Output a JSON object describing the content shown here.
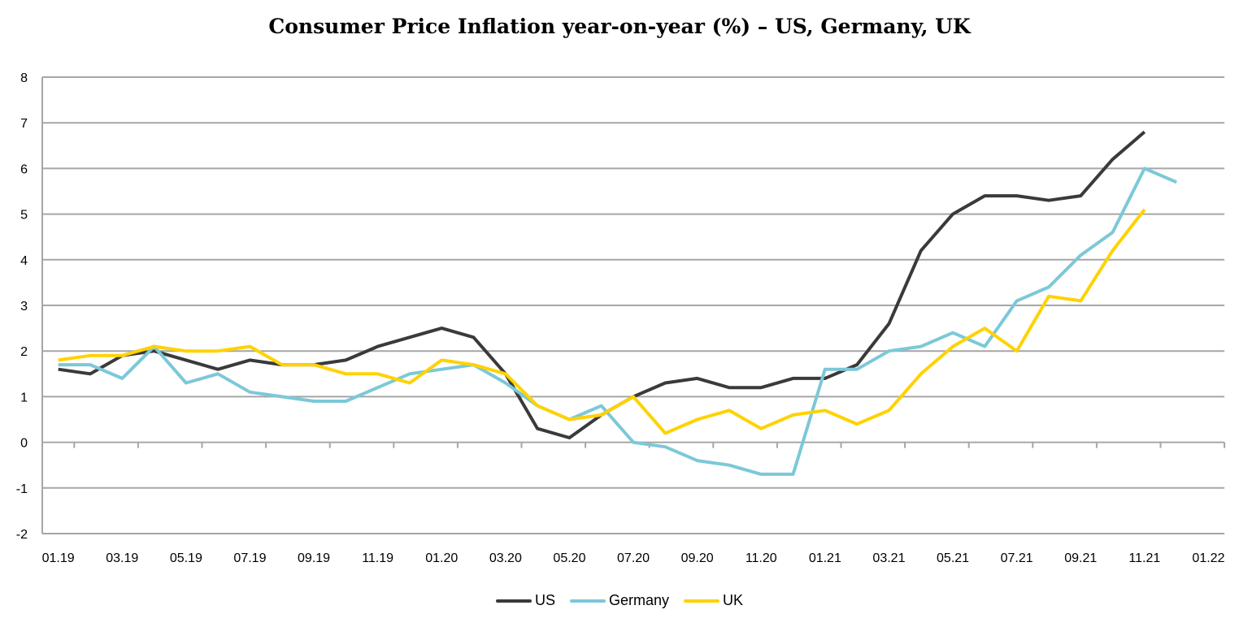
{
  "chart_data": {
    "type": "line",
    "title": "Consumer Price Inflation year-on-year (%) – US, Germany, UK",
    "xlabel": "",
    "ylabel": "",
    "ylim": [
      -2,
      8
    ],
    "yticks": [
      "-2",
      "-1",
      "0",
      "1",
      "2",
      "3",
      "4",
      "5",
      "6",
      "7",
      "8"
    ],
    "grid": true,
    "legend": "bottom",
    "xtick_labels": [
      "01.19",
      "03.19",
      "05.19",
      "07.19",
      "09.19",
      "11.19",
      "01.20",
      "03.20",
      "05.20",
      "07.20",
      "09.20",
      "11.20",
      "01.21",
      "03.21",
      "05.21",
      "07.21",
      "09.21",
      "11.21",
      "01.22"
    ],
    "x": [
      "01.19",
      "02.19",
      "03.19",
      "04.19",
      "05.19",
      "06.19",
      "07.19",
      "08.19",
      "09.19",
      "10.19",
      "11.19",
      "12.19",
      "01.20",
      "02.20",
      "03.20",
      "04.20",
      "05.20",
      "06.20",
      "07.20",
      "08.20",
      "09.20",
      "10.20",
      "11.20",
      "12.20",
      "01.21",
      "02.21",
      "03.21",
      "04.21",
      "05.21",
      "06.21",
      "07.21",
      "08.21",
      "09.21",
      "10.21",
      "11.21",
      "12.21"
    ],
    "series": [
      {
        "name": "US",
        "color": "#3a3a3a",
        "values": [
          1.6,
          1.5,
          1.9,
          2.0,
          1.8,
          1.6,
          1.8,
          1.7,
          1.7,
          1.8,
          2.1,
          2.3,
          2.5,
          2.3,
          1.5,
          0.3,
          0.1,
          0.6,
          1.0,
          1.3,
          1.4,
          1.2,
          1.2,
          1.4,
          1.4,
          1.7,
          2.6,
          4.2,
          5.0,
          5.4,
          5.4,
          5.3,
          5.4,
          6.2,
          6.8,
          null
        ]
      },
      {
        "name": "Germany",
        "color": "#7cc8d8",
        "values": [
          1.7,
          1.7,
          1.4,
          2.1,
          1.3,
          1.5,
          1.1,
          1.0,
          0.9,
          0.9,
          1.2,
          1.5,
          1.6,
          1.7,
          1.3,
          0.8,
          0.5,
          0.8,
          0.0,
          -0.1,
          -0.4,
          -0.5,
          -0.7,
          -0.7,
          1.6,
          1.6,
          2.0,
          2.1,
          2.4,
          2.1,
          3.1,
          3.4,
          4.1,
          4.6,
          6.0,
          5.7
        ]
      },
      {
        "name": "UK",
        "color": "#ffd200",
        "values": [
          1.8,
          1.9,
          1.9,
          2.1,
          2.0,
          2.0,
          2.1,
          1.7,
          1.7,
          1.5,
          1.5,
          1.3,
          1.8,
          1.7,
          1.5,
          0.8,
          0.5,
          0.6,
          1.0,
          0.2,
          0.5,
          0.7,
          0.3,
          0.6,
          0.7,
          0.4,
          0.7,
          1.5,
          2.1,
          2.5,
          2.0,
          3.2,
          3.1,
          4.2,
          5.1,
          null
        ]
      }
    ]
  }
}
